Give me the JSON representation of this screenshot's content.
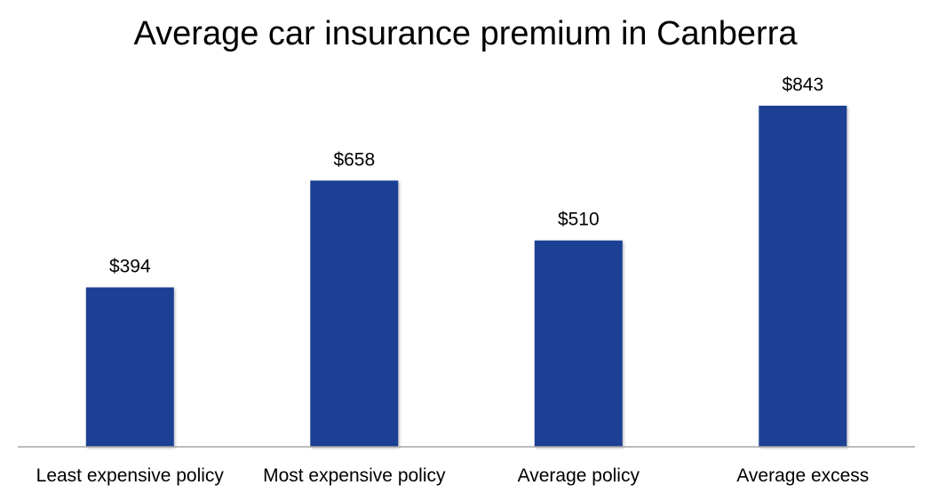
{
  "chart_data": {
    "type": "bar",
    "title": "Average car insurance premium in Canberra",
    "categories": [
      "Least expensive policy",
      "Most expensive policy",
      "Average policy",
      "Average excess"
    ],
    "values": [
      394,
      658,
      510,
      843
    ],
    "data_labels": [
      "$394",
      "$658",
      "$510",
      "$843"
    ],
    "xlabel": "",
    "ylabel": "",
    "ylim": [
      0,
      843
    ],
    "grid": false,
    "legend": "none",
    "colors": {
      "bar": "#1f3f93",
      "axis": "#a6a6a6"
    }
  }
}
